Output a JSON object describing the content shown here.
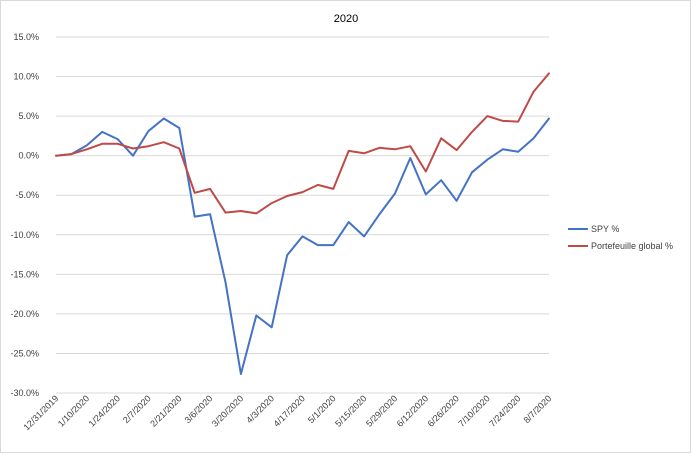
{
  "chart_data": {
    "type": "line",
    "title": "2020",
    "xlabel": "",
    "ylabel": "",
    "ylim": [
      -30,
      15
    ],
    "y_ticks": [
      "15.0%",
      "10.0%",
      "5.0%",
      "0.0%",
      "-5.0%",
      "-10.0%",
      "-15.0%",
      "-20.0%",
      "-25.0%",
      "-30.0%"
    ],
    "y_tick_values": [
      15,
      10,
      5,
      0,
      -5,
      -10,
      -15,
      -20,
      -25,
      -30
    ],
    "x_tick_labels": [
      "12/31/2019",
      "1/10/2020",
      "1/24/2020",
      "2/7/2020",
      "2/21/2020",
      "3/6/2020",
      "3/20/2020",
      "4/3/2020",
      "4/17/2020",
      "5/1/2020",
      "5/15/2020",
      "5/29/2020",
      "6/12/2020",
      "6/26/2020",
      "7/10/2020",
      "7/24/2020",
      "8/7/2020"
    ],
    "x_tick_index": [
      0,
      2,
      4,
      6,
      8,
      10,
      12,
      14,
      16,
      18,
      20,
      22,
      24,
      26,
      28,
      30,
      32
    ],
    "x": [
      "12/31/2019",
      "1/3/2020",
      "1/10/2020",
      "1/17/2020",
      "1/24/2020",
      "1/31/2020",
      "2/7/2020",
      "2/14/2020",
      "2/21/2020",
      "2/28/2020",
      "3/6/2020",
      "3/13/2020",
      "3/20/2020",
      "3/27/2020",
      "4/3/2020",
      "4/10/2020",
      "4/17/2020",
      "4/24/2020",
      "5/1/2020",
      "5/8/2020",
      "5/15/2020",
      "5/22/2020",
      "5/29/2020",
      "6/5/2020",
      "6/12/2020",
      "6/19/2020",
      "6/26/2020",
      "7/3/2020",
      "7/10/2020",
      "7/17/2020",
      "7/24/2020",
      "7/31/2020",
      "8/7/2020"
    ],
    "series": [
      {
        "name": "SPY %",
        "color": "#4472c4",
        "values": [
          0.0,
          0.2,
          1.3,
          3.0,
          2.1,
          0.0,
          3.1,
          4.7,
          3.5,
          -7.7,
          -7.4,
          -16.0,
          -27.6,
          -20.2,
          -21.7,
          -12.6,
          -10.2,
          -11.3,
          -11.3,
          -8.4,
          -10.2,
          -7.4,
          -4.8,
          -0.3,
          -4.9,
          -3.1,
          -5.7,
          -2.1,
          -0.5,
          0.8,
          0.5,
          2.2,
          4.7
        ]
      },
      {
        "name": "Portefeuille global %",
        "color": "#be4b48",
        "values": [
          0.0,
          0.2,
          0.8,
          1.5,
          1.5,
          0.9,
          1.2,
          1.7,
          0.9,
          -4.7,
          -4.2,
          -7.2,
          -7.0,
          -7.3,
          -6.0,
          -5.1,
          -4.6,
          -3.7,
          -4.2,
          0.6,
          0.3,
          1.0,
          0.8,
          1.2,
          -2.0,
          2.2,
          0.7,
          3.0,
          5.0,
          4.4,
          4.3,
          8.1,
          10.4
        ]
      }
    ],
    "grid": true,
    "legend_position": "right"
  }
}
